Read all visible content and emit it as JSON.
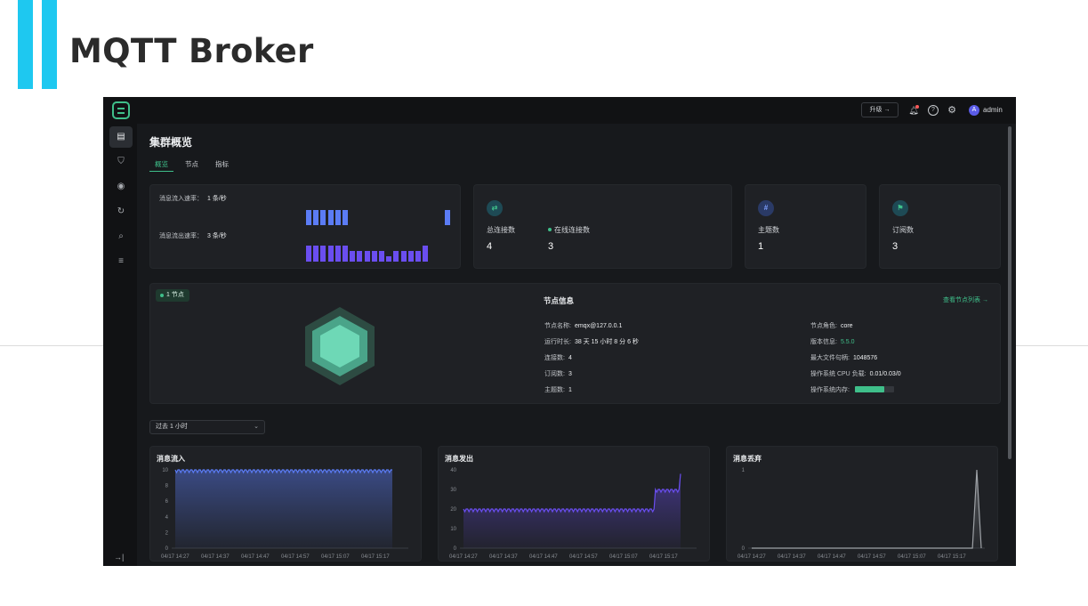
{
  "slide": {
    "title": "MQTT Broker"
  },
  "topbar": {
    "upgrade_label": "升级 →",
    "user_initial": "A",
    "user_name": "admin",
    "help_glyph": "?"
  },
  "icons": [
    "logo-icon",
    "bell-icon",
    "help-icon",
    "gear-icon",
    "dashboard-icon",
    "shield-icon",
    "plugin-icon",
    "rule-icon",
    "diagnose-icon",
    "data-icon",
    "collapse-icon"
  ],
  "page": {
    "title": "集群概览",
    "tabs": [
      "概览",
      "节点",
      "指标"
    ]
  },
  "rates": {
    "in_label": "消息流入速率：",
    "in_value": "1 条/秒",
    "out_label": "消息流出速率：",
    "out_value": "3 条/秒",
    "in_bars": [
      1,
      1,
      1,
      1,
      1,
      1,
      0,
      0,
      0,
      0,
      0,
      0,
      0,
      0,
      0,
      0,
      0,
      0,
      0,
      1
    ],
    "out_bars": [
      1,
      1,
      1,
      1,
      1,
      1,
      0.67,
      0.67,
      0.67,
      0.67,
      0.67,
      0.33,
      0.67,
      0.67,
      0.67,
      0.67,
      1
    ]
  },
  "stats": {
    "total_connections": {
      "label": "总连接数",
      "value": "4"
    },
    "online_connections": {
      "label": "在线连接数",
      "value": "3"
    },
    "topics": {
      "label": "主题数",
      "value": "1"
    },
    "subscriptions": {
      "label": "订阅数",
      "value": "3"
    }
  },
  "node": {
    "badge": "1 节点",
    "title": "节点信息",
    "list_link": "查看节点列表 →",
    "name_label": "节点名称:",
    "name": "emqx@127.0.0.1",
    "uptime_label": "运行时长:",
    "uptime": "38 天 15 小时 8 分 6 秒",
    "conn_label": "连接数:",
    "conn": "4",
    "subs_label": "订阅数:",
    "subs": "3",
    "topics_label": "主题数:",
    "topics": "1",
    "role_label": "节点角色:",
    "role": "core",
    "version_label": "版本信息:",
    "version": "5.5.0",
    "fd_label": "最大文件句柄:",
    "fd": "1048576",
    "cpu_label": "操作系统 CPU 负载:",
    "cpu": "0.01/0.03/0",
    "mem_label": "操作系统内存:",
    "mem_fraction": 0.75
  },
  "range": {
    "value": "过去 1 小时"
  },
  "chart_data": [
    {
      "type": "area",
      "title": "消息流入",
      "xlabels": [
        "04/17 14:27",
        "04/17 14:37",
        "04/17 14:47",
        "04/17 14:57",
        "04/17 15:07",
        "04/17 15:17"
      ],
      "yticks": [
        0,
        2,
        4,
        6,
        8,
        10
      ],
      "ylim": [
        0,
        10
      ],
      "color": "#5b7cf5",
      "series": [
        {
          "values": [
            10,
            10,
            10,
            10,
            10,
            10,
            10,
            10,
            10,
            10,
            10,
            10,
            10,
            10,
            10,
            10,
            10,
            10,
            10,
            10,
            10,
            10,
            10,
            10,
            10,
            10,
            10,
            10,
            10,
            10,
            10,
            10,
            10,
            10,
            10,
            10,
            10,
            10,
            10,
            10,
            10,
            10,
            10,
            10,
            10,
            10,
            10,
            10,
            10,
            10,
            10,
            10,
            10
          ]
        }
      ]
    },
    {
      "type": "area",
      "title": "消息发出",
      "xlabels": [
        "04/17 14:27",
        "04/17 14:37",
        "04/17 14:47",
        "04/17 14:57",
        "04/17 15:07",
        "04/17 15:17"
      ],
      "yticks": [
        0,
        10,
        20,
        30,
        40
      ],
      "ylim": [
        0,
        40
      ],
      "color": "#6a4ef0",
      "series": [
        {
          "values": [
            20,
            20,
            20,
            20,
            20,
            20,
            20,
            20,
            20,
            20,
            20,
            20,
            20,
            20,
            20,
            20,
            20,
            20,
            20,
            20,
            20,
            20,
            20,
            20,
            20,
            20,
            20,
            20,
            20,
            20,
            20,
            20,
            20,
            20,
            20,
            20,
            20,
            20,
            20,
            20,
            20,
            20,
            20,
            20,
            20,
            20,
            30,
            30,
            30,
            30,
            30,
            30,
            38
          ]
        }
      ]
    },
    {
      "type": "area",
      "title": "消息丢弃",
      "xlabels": [
        "04/17 14:27",
        "04/17 14:37",
        "04/17 14:47",
        "04/17 14:57",
        "04/17 15:07",
        "04/17 15:17"
      ],
      "yticks": [
        0,
        1
      ],
      "ylim": [
        0,
        1
      ],
      "color": "#9ea2a7",
      "series": [
        {
          "values": [
            0,
            0,
            0,
            0,
            0,
            0,
            0,
            0,
            0,
            0,
            0,
            0,
            0,
            0,
            0,
            0,
            0,
            0,
            0,
            0,
            0,
            0,
            0,
            0,
            0,
            0,
            0,
            0,
            0,
            0,
            0,
            0,
            0,
            0,
            0,
            0,
            0,
            0,
            0,
            0,
            0,
            0,
            0,
            0,
            0,
            0,
            0,
            0,
            0,
            0,
            0,
            1,
            0
          ]
        }
      ]
    }
  ]
}
